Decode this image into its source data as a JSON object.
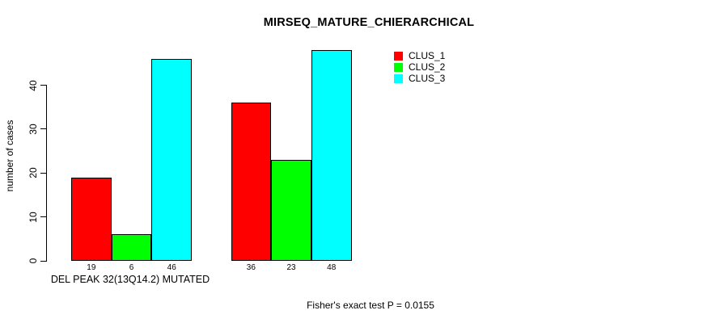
{
  "chart_data": {
    "type": "bar",
    "title": "MIRSEQ_MATURE_CHIERARCHICAL",
    "ylabel": "number of cases",
    "xlabel": "DEL PEAK 32(13Q14.2) MUTATED",
    "categories": [
      "DEL PEAK 32(13Q14.2) MUTATED",
      ""
    ],
    "series": [
      {
        "name": "CLUS_1",
        "color": "#ff0000",
        "values": [
          19,
          36
        ]
      },
      {
        "name": "CLUS_2",
        "color": "#00ff00",
        "values": [
          6,
          23
        ]
      },
      {
        "name": "CLUS_3",
        "color": "#00ffff",
        "values": [
          46,
          48
        ]
      }
    ],
    "show_bar_value_labels": true,
    "yticks": [
      0,
      10,
      20,
      30,
      40
    ],
    "ylim": [
      0,
      48
    ],
    "grid": false,
    "legend_position": "top-right",
    "bar_border_color": "#000000",
    "background_color": "#ffffff"
  },
  "annotation": {
    "stat_text": "Fisher's exact test P = 0.0155"
  }
}
